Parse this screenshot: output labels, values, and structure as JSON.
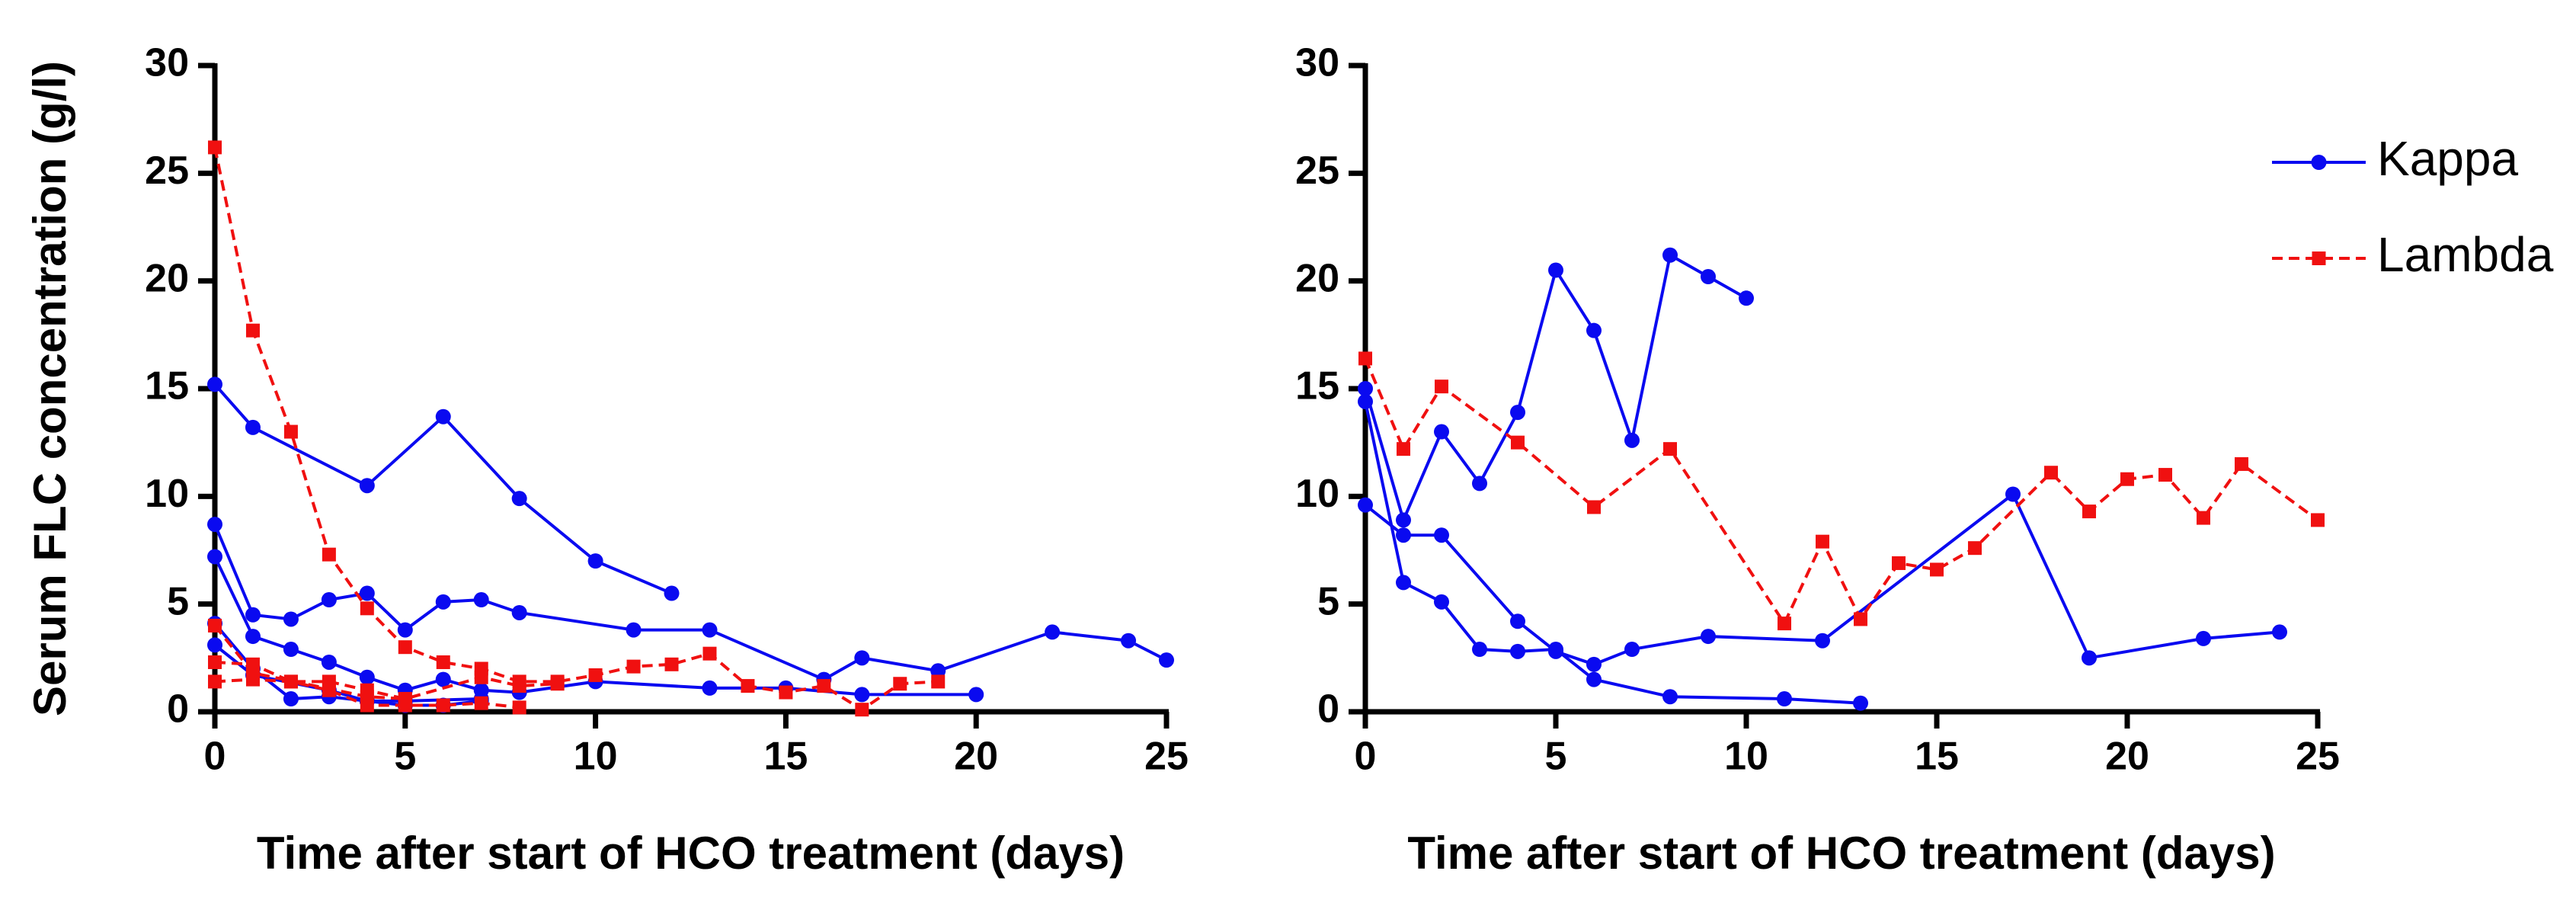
{
  "chart_data": [
    {
      "type": "line",
      "ylabel": "Serum FLC concentration (g/l)",
      "xlabel": "Time after start of HCO treatment (days)",
      "xlim": [
        0,
        25
      ],
      "ylim": [
        0,
        30
      ],
      "xticks": [
        0,
        5,
        10,
        15,
        20,
        25
      ],
      "yticks": [
        0,
        5,
        10,
        15,
        20,
        25,
        30
      ],
      "series": [
        {
          "name": "Kappa",
          "color": "#0a0af0",
          "marker": "circle",
          "dash": false,
          "x": [
            0,
            1,
            4,
            6,
            8,
            10,
            12
          ],
          "values": [
            15.2,
            13.2,
            10.5,
            13.7,
            9.9,
            7.0,
            5.5
          ]
        },
        {
          "name": "Kappa",
          "color": "#0a0af0",
          "marker": "circle",
          "dash": false,
          "x": [
            0,
            1,
            2,
            3,
            4,
            5,
            6,
            7,
            8,
            11,
            13,
            16,
            17,
            19,
            22,
            24,
            25
          ],
          "values": [
            8.7,
            4.5,
            4.3,
            5.2,
            5.5,
            3.8,
            5.1,
            5.2,
            4.6,
            3.8,
            3.8,
            1.5,
            2.5,
            1.9,
            3.7,
            3.3,
            2.4
          ]
        },
        {
          "name": "Kappa",
          "color": "#0a0af0",
          "marker": "circle",
          "dash": false,
          "x": [
            0,
            1,
            2,
            3,
            4,
            5,
            6,
            7,
            8,
            10,
            13,
            15,
            17,
            20
          ],
          "values": [
            7.2,
            3.5,
            2.9,
            2.3,
            1.6,
            1.0,
            1.5,
            1.0,
            0.9,
            1.4,
            1.1,
            1.1,
            0.8,
            0.8
          ]
        },
        {
          "name": "Kappa",
          "color": "#0a0af0",
          "marker": "circle",
          "dash": false,
          "x": [
            0,
            1,
            2,
            3,
            4,
            5,
            6,
            7
          ],
          "values": [
            4.1,
            2.0,
            0.6,
            0.7,
            0.5,
            0.3,
            0.3,
            0.5
          ]
        },
        {
          "name": "Kappa",
          "color": "#0a0af0",
          "marker": "circle",
          "dash": false,
          "x": [
            0,
            1,
            3,
            4,
            5,
            7
          ],
          "values": [
            3.1,
            1.7,
            1.0,
            0.5,
            0.5,
            0.6
          ]
        },
        {
          "name": "Lambda",
          "color": "#f01010",
          "marker": "square",
          "dash": true,
          "x": [
            0,
            1,
            2,
            3,
            4,
            5,
            6,
            7,
            8,
            9,
            10,
            11,
            12,
            13,
            14,
            15,
            16,
            17,
            18,
            19
          ],
          "values": [
            26.2,
            17.7,
            13.0,
            7.3,
            4.8,
            3.0,
            2.3,
            2.0,
            1.4,
            1.4,
            1.7,
            2.1,
            2.2,
            2.7,
            1.2,
            0.9,
            1.2,
            0.1,
            1.3,
            1.4
          ]
        },
        {
          "name": "Lambda",
          "color": "#f01010",
          "marker": "square",
          "dash": true,
          "x": [
            0,
            1,
            2,
            3,
            4,
            5,
            7,
            8,
            9
          ],
          "values": [
            2.3,
            2.2,
            1.4,
            1.4,
            1.0,
            0.6,
            1.6,
            1.2,
            1.3
          ]
        },
        {
          "name": "Lambda",
          "color": "#f01010",
          "marker": "square",
          "dash": true,
          "x": [
            0,
            1,
            2,
            3,
            4,
            5,
            6,
            7,
            8
          ],
          "values": [
            1.4,
            1.5,
            1.4,
            1.0,
            0.3,
            0.3,
            0.3,
            0.4,
            0.2
          ]
        },
        {
          "name": "Lambda",
          "color": "#f01010",
          "marker": "square",
          "dash": true,
          "x": [
            0,
            1,
            4,
            5
          ],
          "values": [
            4.0,
            1.8,
            0.7,
            0.6
          ]
        }
      ]
    },
    {
      "type": "line",
      "xlabel": "Time after start of HCO treatment (days)",
      "xlim": [
        0,
        25
      ],
      "ylim": [
        0,
        30
      ],
      "xticks": [
        0,
        5,
        10,
        15,
        20,
        25
      ],
      "yticks": [
        0,
        5,
        10,
        15,
        20,
        25,
        30
      ],
      "legend": "upper right",
      "series": [
        {
          "name": "Kappa",
          "color": "#0a0af0",
          "marker": "circle",
          "dash": false,
          "x": [
            0,
            1,
            2,
            3,
            4,
            5,
            6,
            7,
            8,
            9,
            10
          ],
          "values": [
            15.0,
            8.9,
            13.0,
            10.6,
            13.9,
            20.5,
            17.7,
            12.6,
            21.2,
            20.2,
            19.2
          ]
        },
        {
          "name": "Kappa",
          "color": "#0a0af0",
          "marker": "circle",
          "dash": false,
          "x": [
            0,
            1,
            2,
            3,
            4,
            5,
            6,
            8,
            11,
            13
          ],
          "values": [
            14.4,
            6.0,
            5.1,
            2.9,
            2.8,
            2.9,
            1.5,
            0.7,
            0.6,
            0.4
          ]
        },
        {
          "name": "Kappa",
          "color": "#0a0af0",
          "marker": "circle",
          "dash": false,
          "x": [
            0,
            1,
            2,
            4,
            5,
            6,
            7,
            9,
            12,
            17,
            19,
            22,
            24
          ],
          "values": [
            9.6,
            8.2,
            8.2,
            4.2,
            2.8,
            2.2,
            2.9,
            3.5,
            3.3,
            10.1,
            2.5,
            3.4,
            3.7
          ]
        },
        {
          "name": "Lambda",
          "color": "#f01010",
          "marker": "square",
          "dash": true,
          "x": [
            0,
            1,
            2,
            4,
            6,
            8,
            11,
            12,
            13,
            14,
            15,
            16,
            18,
            19,
            20,
            21,
            22,
            23,
            25
          ],
          "values": [
            16.4,
            12.2,
            15.1,
            12.5,
            9.5,
            12.2,
            4.1,
            7.9,
            4.3,
            6.9,
            6.6,
            7.6,
            11.1,
            9.3,
            10.8,
            11.0,
            9.0,
            11.5,
            8.9
          ]
        }
      ]
    }
  ]
}
